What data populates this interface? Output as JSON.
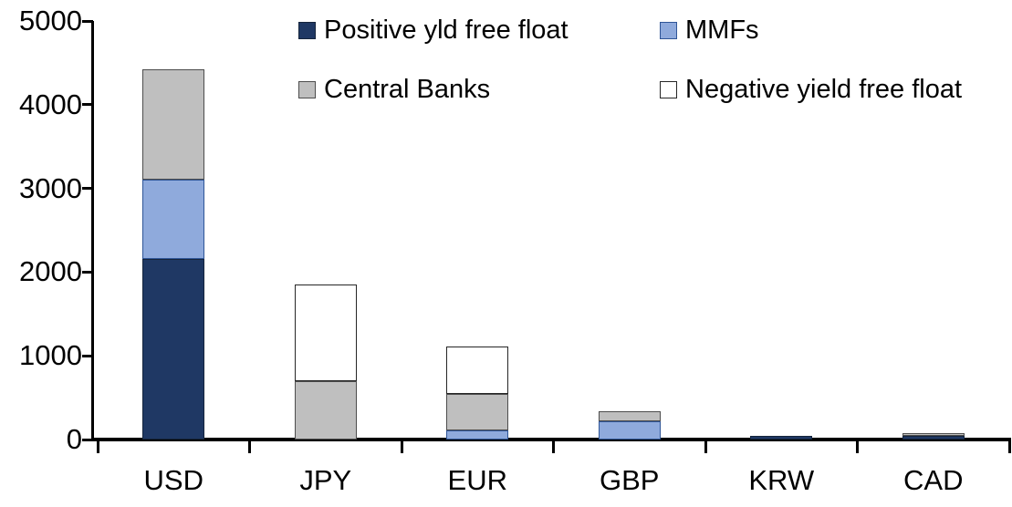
{
  "chart_data": {
    "type": "bar",
    "stacked": true,
    "title": "",
    "xlabel": "",
    "ylabel": "",
    "grid": false,
    "legend_position": "top",
    "categories": [
      "USD",
      "JPY",
      "EUR",
      "GBP",
      "KRW",
      "CAD"
    ],
    "series": [
      {
        "name": "Positive yld free float",
        "color": "#1F3864",
        "border": "#15243C",
        "values": [
          2160,
          0,
          0,
          0,
          45,
          45
        ]
      },
      {
        "name": "MMFs",
        "color": "#8FAADC",
        "border": "#2F5597",
        "values": [
          950,
          0,
          105,
          220,
          0,
          0
        ]
      },
      {
        "name": "Central Banks",
        "color": "#BFBFBF",
        "border": "#4D4D4D",
        "values": [
          1310,
          700,
          435,
          120,
          0,
          35
        ]
      },
      {
        "name": "Negative yield free float",
        "color": "#FFFFFF",
        "border": "#262626",
        "values": [
          0,
          1150,
          570,
          0,
          0,
          0
        ]
      }
    ],
    "ylim": [
      0,
      5000
    ],
    "yticks": [
      0,
      1000,
      2000,
      3000,
      4000,
      5000
    ],
    "axis_color": "#000000"
  }
}
